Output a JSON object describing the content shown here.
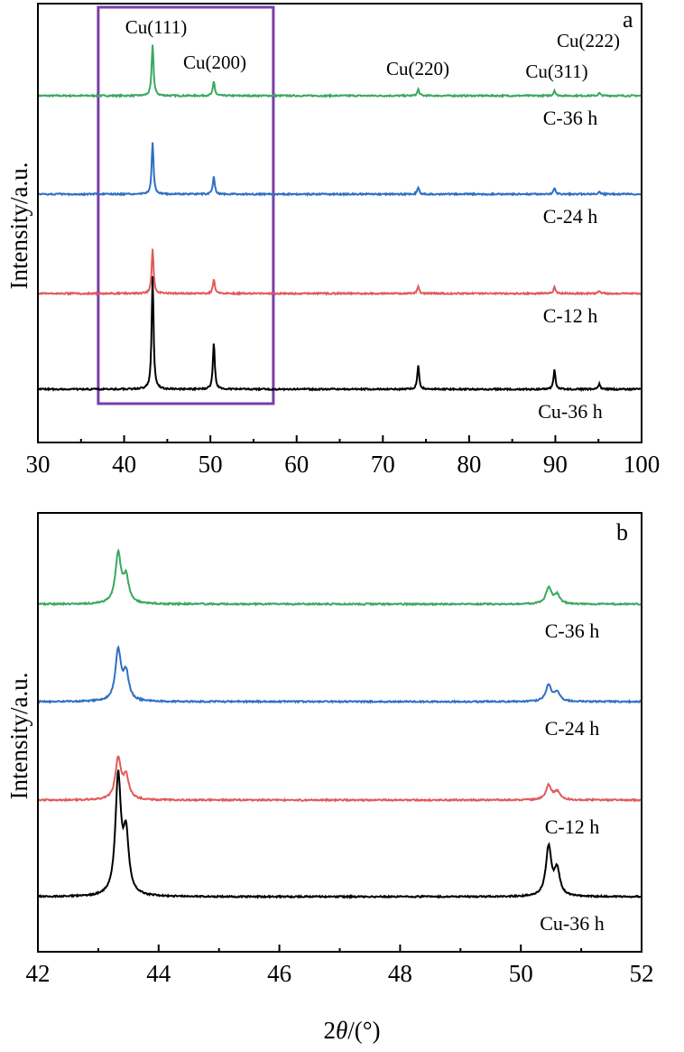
{
  "colors": {
    "green": "#3aa860",
    "blue": "#2f6fc4",
    "red": "#e15a5a",
    "black": "#000000",
    "highlight": "#7a3ea8"
  },
  "ylabel": "Intensity/a.u.",
  "xlabel_prefix": "2",
  "xlabel_theta": "θ",
  "xlabel_suffix": "/(°)",
  "chart_data": [
    {
      "type": "line",
      "panel": "a",
      "xlim": [
        30,
        100
      ],
      "xticks": [
        30,
        40,
        50,
        60,
        70,
        80,
        90,
        100
      ],
      "xtick_labels": [
        "30",
        "40",
        "50",
        "60",
        "70",
        "80",
        "90",
        "100"
      ],
      "ylabel": "Intensity/a.u.",
      "highlight_range": [
        37,
        57.3
      ],
      "peak_labels": [
        {
          "text": "Cu(111)",
          "x": 43.3
        },
        {
          "text": "Cu(200)",
          "x": 50.4
        },
        {
          "text": "Cu(220)",
          "x": 74.1
        },
        {
          "text": "Cu(311)",
          "x": 89.9
        },
        {
          "text": "Cu(222)",
          "x": 95.1
        }
      ],
      "series": [
        {
          "name": "C-36 h",
          "color_key": "green",
          "offset": 3,
          "peaks": [
            [
              43.3,
              57
            ],
            [
              50.4,
              16
            ],
            [
              74.1,
              7
            ],
            [
              89.9,
              6
            ],
            [
              95.1,
              3
            ]
          ]
        },
        {
          "name": "C-24 h",
          "color_key": "blue",
          "offset": 2,
          "peaks": [
            [
              43.3,
              57
            ],
            [
              50.4,
              20
            ],
            [
              74.1,
              8
            ],
            [
              89.9,
              7
            ],
            [
              95.1,
              3
            ]
          ]
        },
        {
          "name": "C-12 h",
          "color_key": "red",
          "offset": 1,
          "peaks": [
            [
              43.3,
              50
            ],
            [
              50.4,
              16
            ],
            [
              74.1,
              8
            ],
            [
              89.9,
              7
            ],
            [
              95.1,
              3
            ]
          ]
        },
        {
          "name": "Cu-36 h",
          "color_key": "black",
          "offset": 0,
          "peaks": [
            [
              43.3,
              125
            ],
            [
              50.4,
              52
            ],
            [
              74.1,
              26
            ],
            [
              89.9,
              22
            ],
            [
              95.1,
              6
            ]
          ]
        }
      ]
    },
    {
      "type": "line",
      "panel": "b",
      "xlim": [
        42,
        52
      ],
      "xticks": [
        42,
        44,
        46,
        48,
        50,
        52
      ],
      "xtick_labels": [
        "42",
        "44",
        "46",
        "48",
        "50",
        "52"
      ],
      "ylabel": "Intensity/a.u.",
      "xlabel": "2θ/(°)",
      "series": [
        {
          "name": "C-36 h",
          "color_key": "green",
          "offset": 3,
          "peaks": [
            [
              43.33,
              55
            ],
            [
              43.46,
              28
            ],
            [
              50.46,
              18
            ],
            [
              50.6,
              10
            ]
          ]
        },
        {
          "name": "C-24 h",
          "color_key": "blue",
          "offset": 2,
          "peaks": [
            [
              43.33,
              56
            ],
            [
              43.46,
              30
            ],
            [
              50.46,
              18
            ],
            [
              50.6,
              10
            ]
          ]
        },
        {
          "name": "C-12 h",
          "color_key": "red",
          "offset": 1,
          "peaks": [
            [
              43.33,
              45
            ],
            [
              43.46,
              25
            ],
            [
              50.46,
              16
            ],
            [
              50.6,
              9
            ]
          ]
        },
        {
          "name": "Cu-36 h",
          "color_key": "black",
          "offset": 0,
          "peaks": [
            [
              43.33,
              130
            ],
            [
              43.46,
              64
            ],
            [
              50.46,
              54
            ],
            [
              50.6,
              28
            ]
          ]
        }
      ]
    }
  ]
}
